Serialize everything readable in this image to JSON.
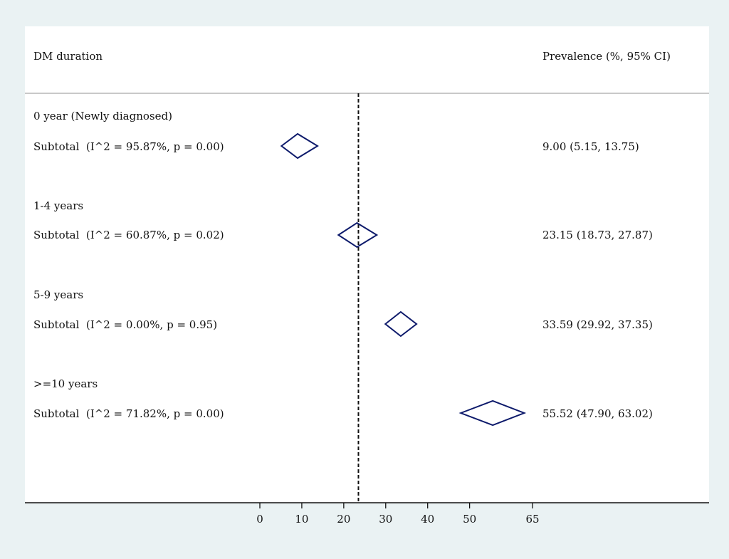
{
  "header": {
    "left_title": "DM duration",
    "right_title": "Prevalence (%, 95% CI)"
  },
  "chart_data": {
    "type": "forest",
    "xlabel": "",
    "x_ticks": [
      0,
      10,
      20,
      30,
      40,
      50,
      65
    ],
    "xlim": [
      0,
      65
    ],
    "reference_line": 23.5,
    "reference_line_style": "dashed",
    "marker_color": "#0d1a6b",
    "groups": [
      {
        "heading": "0 year (Newly diagnosed)",
        "subtotal_label": "Subtotal  (I^2 = 95.87%, p = 0.00)",
        "estimate": 9.0,
        "ci_low": 5.15,
        "ci_high": 13.75,
        "estimate_text": "9.00 (5.15, 13.75)"
      },
      {
        "heading": "1-4 years",
        "subtotal_label": "Subtotal  (I^2 = 60.87%, p = 0.02)",
        "estimate": 23.15,
        "ci_low": 18.73,
        "ci_high": 27.87,
        "estimate_text": "23.15 (18.73, 27.87)"
      },
      {
        "heading": "5-9 years",
        "subtotal_label": "Subtotal  (I^2 = 0.00%, p = 0.95)",
        "estimate": 33.59,
        "ci_low": 29.92,
        "ci_high": 37.35,
        "estimate_text": "33.59 (29.92, 37.35)"
      },
      {
        "heading": ">=10 years",
        "subtotal_label": "Subtotal  (I^2 = 71.82%, p = 0.00)",
        "estimate": 55.52,
        "ci_low": 47.9,
        "ci_high": 63.02,
        "estimate_text": "55.52 (47.90, 63.02)"
      }
    ]
  }
}
